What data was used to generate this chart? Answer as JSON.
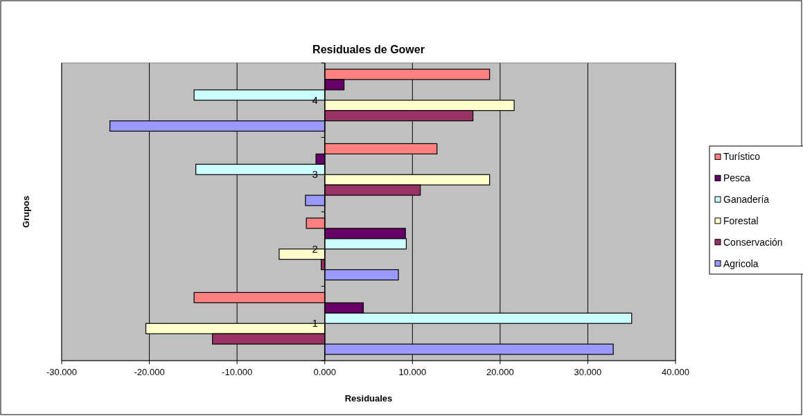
{
  "chart_data": {
    "type": "bar",
    "orientation": "horizontal",
    "title": "Residuales de Gower",
    "xlabel": "Residuales",
    "ylabel": "Grupos",
    "categories": [
      "4",
      "3",
      "2",
      "1"
    ],
    "series": [
      {
        "name": "Turístico",
        "color": "#ff8080",
        "values": [
          18.8,
          12.8,
          -2.1,
          -14.9
        ]
      },
      {
        "name": "Pesca",
        "color": "#660066",
        "values": [
          2.2,
          -1.0,
          9.2,
          4.4
        ]
      },
      {
        "name": "Ganadería",
        "color": "#ccffff",
        "values": [
          -14.9,
          -14.7,
          9.3,
          35.0
        ]
      },
      {
        "name": "Forestal",
        "color": "#ffffcc",
        "values": [
          21.6,
          18.8,
          -5.2,
          -20.4
        ]
      },
      {
        "name": "Conservación",
        "color": "#993366",
        "values": [
          16.9,
          10.9,
          -0.4,
          -12.8
        ]
      },
      {
        "name": "Agricola",
        "color": "#9999ff",
        "values": [
          -24.5,
          -2.2,
          8.4,
          32.9
        ]
      }
    ],
    "xlim": [
      -30,
      40
    ],
    "xticks": [
      {
        "value": -30,
        "label": "-30.000"
      },
      {
        "value": -20,
        "label": "-20.000"
      },
      {
        "value": -10,
        "label": "-10.000"
      },
      {
        "value": 0,
        "label": "0.000"
      },
      {
        "value": 10,
        "label": "10.000"
      },
      {
        "value": 20,
        "label": "20.000"
      },
      {
        "value": 30,
        "label": "30.000"
      },
      {
        "value": 40,
        "label": "40.000"
      }
    ],
    "grid": "x",
    "legend": "right"
  }
}
